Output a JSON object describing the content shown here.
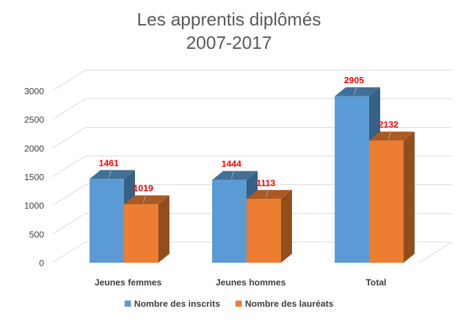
{
  "chart_data": {
    "type": "bar",
    "title_line1": "Les apprentis diplômés",
    "title_line2": "2007-2017",
    "categories": [
      "Jeunes femmes",
      "Jeunes hommes",
      "Total"
    ],
    "series": [
      {
        "name": "Nombre des inscrits",
        "values": [
          1461,
          1444,
          2905
        ],
        "color": "#5b9bd5"
      },
      {
        "name": "Nombre des lauréats",
        "values": [
          1019,
          1113,
          2132
        ],
        "color": "#ed7d31"
      }
    ],
    "yticks": [
      "0",
      "500",
      "1000",
      "1500",
      "2000",
      "2500",
      "3000"
    ],
    "ylim": [
      0,
      3000
    ],
    "grid": true,
    "legend_position": "bottom",
    "label_color": "#ff0000",
    "style": "3d-clustered-column"
  }
}
